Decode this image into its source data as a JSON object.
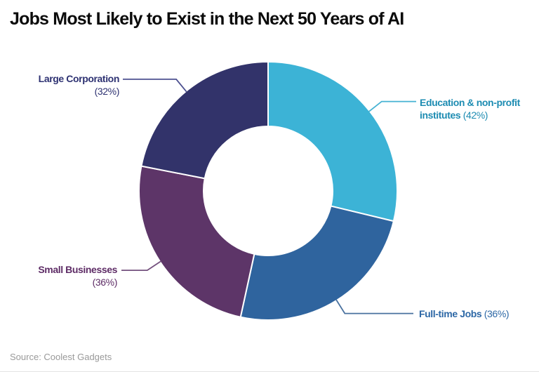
{
  "title": "Jobs Most Likely to Exist in the Next 50 Years of AI",
  "source": "Source: Coolest Gadgets",
  "chart_data": {
    "type": "pie",
    "subtype": "donut",
    "title": "Jobs Most Likely to Exist in the Next 50 Years of AI",
    "source": "Source: Coolest Gadgets",
    "direction": "clockwise",
    "start_angle_deg": 0,
    "inner_radius_ratio": 0.5,
    "categories": [
      "Education & non-profit institutes",
      "Full-time Jobs",
      "Small Businesses",
      "Large Corporation"
    ],
    "values": [
      42,
      36,
      36,
      32
    ],
    "total_units": 146,
    "slices": [
      {
        "label": "Education & non-profit institutes",
        "slug": "education-non-profit-institutes",
        "value": 42,
        "pct_text": "(42%)",
        "color": "#3cb3d6",
        "text_color": "#1d8cb2",
        "leader_color": "#45b2d3",
        "callout_lines": [
          [
            {
              "t": "Education & non-profit",
              "b": true
            }
          ],
          [
            {
              "t": "institutes",
              "b": true
            },
            {
              "t": " (42%)",
              "b": false
            }
          ]
        ]
      },
      {
        "label": "Full-time Jobs",
        "slug": "full-time-jobs",
        "value": 36,
        "pct_text": "(36%)",
        "color": "#2f649e",
        "text_color": "#2d68a6",
        "leader_color": "#49719f",
        "callout_lines": [
          [
            {
              "t": "Full-time Jobs",
              "b": true
            },
            {
              "t": " (36%)",
              "b": false
            }
          ]
        ]
      },
      {
        "label": "Small Businesses",
        "slug": "small-businesses",
        "value": 36,
        "pct_text": "(36%)",
        "color": "#5d3568",
        "text_color": "#5e2c66",
        "leader_color": "#74517e",
        "callout_lines": [
          [
            {
              "t": "Small Businesses",
              "b": true
            }
          ],
          [
            {
              "t": "(36%)",
              "b": false
            }
          ]
        ]
      },
      {
        "label": "Large Corporation",
        "slug": "large-corporation",
        "value": 32,
        "pct_text": "(32%)",
        "color": "#32336a",
        "text_color": "#2e3272",
        "leader_color": "#4d5190",
        "callout_lines": [
          [
            {
              "t": "Large Corporation",
              "b": true
            }
          ],
          [
            {
              "t": "(32%)",
              "b": false
            }
          ]
        ]
      }
    ]
  }
}
